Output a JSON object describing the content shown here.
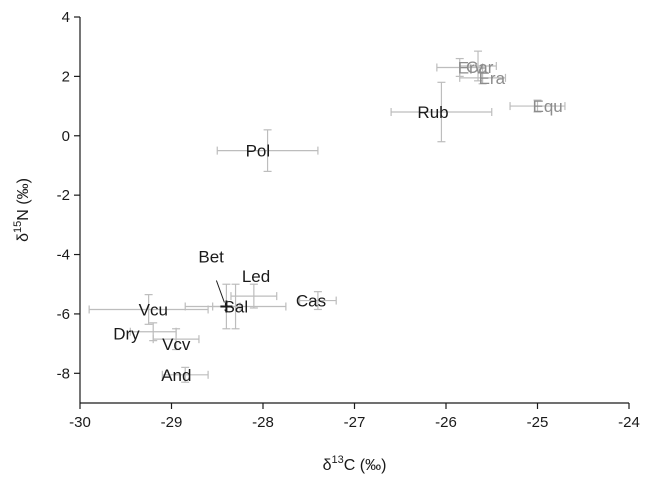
{
  "chart_data": {
    "type": "scatter",
    "xlabel": {
      "prefix": "δ",
      "sup": "13",
      "suffix": "C (‰)"
    },
    "ylabel": {
      "prefix": "δ",
      "sup": "15",
      "suffix": "N (‰)"
    },
    "xlim": [
      -30,
      -24
    ],
    "ylim": [
      -9,
      4
    ],
    "xticks": [
      -30,
      -29,
      -28,
      -27,
      -26,
      -25,
      -24
    ],
    "yticks": [
      -8,
      -6,
      -4,
      -2,
      0,
      2,
      4
    ],
    "grid": false,
    "colors": {
      "dark": "#1a1a1a",
      "gray": "#8c8c8c",
      "error": "#bdbdbd"
    },
    "points": [
      {
        "label": "Erv",
        "x": -25.85,
        "y": 2.3,
        "xerr": 0.25,
        "yerr": 0.3,
        "label_color": "gray"
      },
      {
        "label": "Car",
        "x": -25.65,
        "y": 2.35,
        "xerr": 0.2,
        "yerr": 0.5,
        "label_color": "gray"
      },
      {
        "label": "Era",
        "x": -25.6,
        "y": 1.95,
        "xerr": 0.25,
        "yerr": 0.2,
        "label_color": "gray"
      },
      {
        "label": "Equ",
        "x": -25.0,
        "y": 1.0,
        "xerr": 0.3,
        "yerr": 0.2,
        "label_color": "gray"
      },
      {
        "label": "Rub",
        "x": -26.05,
        "y": 0.8,
        "xerr": 0.55,
        "yerr": 1.0,
        "label_color": "dark"
      },
      {
        "label": "Pol",
        "x": -27.95,
        "y": -0.5,
        "xerr": 0.55,
        "yerr": 0.7,
        "label_color": "dark"
      },
      {
        "label": "Cas",
        "x": -27.4,
        "y": -5.55,
        "xerr": 0.2,
        "yerr": 0.3,
        "label_color": "dark"
      },
      {
        "label": "Bet",
        "x": -28.4,
        "y": -5.75,
        "xerr": 0.15,
        "yerr": 0.75,
        "label_color": "dark"
      },
      {
        "label": "Led",
        "x": -28.1,
        "y": -5.4,
        "xerr": 0.25,
        "yerr": 0.4,
        "label_color": "dark"
      },
      {
        "label": "Sal",
        "x": -28.3,
        "y": -5.75,
        "xerr": 0.55,
        "yerr": 0.75,
        "label_color": "dark"
      },
      {
        "label": "Vcu",
        "x": -29.25,
        "y": -5.85,
        "xerr": 0.65,
        "yerr": 0.5,
        "label_color": "dark"
      },
      {
        "label": "Dry",
        "x": -29.2,
        "y": -6.6,
        "xerr": 0.25,
        "yerr": 0.3,
        "label_color": "dark"
      },
      {
        "label": "Vcv",
        "x": -28.95,
        "y": -6.85,
        "xerr": 0.25,
        "yerr": 0.35,
        "label_color": "dark"
      },
      {
        "label": "And",
        "x": -28.85,
        "y": -8.05,
        "xerr": 0.25,
        "yerr": 0.25,
        "label_color": "dark"
      }
    ]
  }
}
